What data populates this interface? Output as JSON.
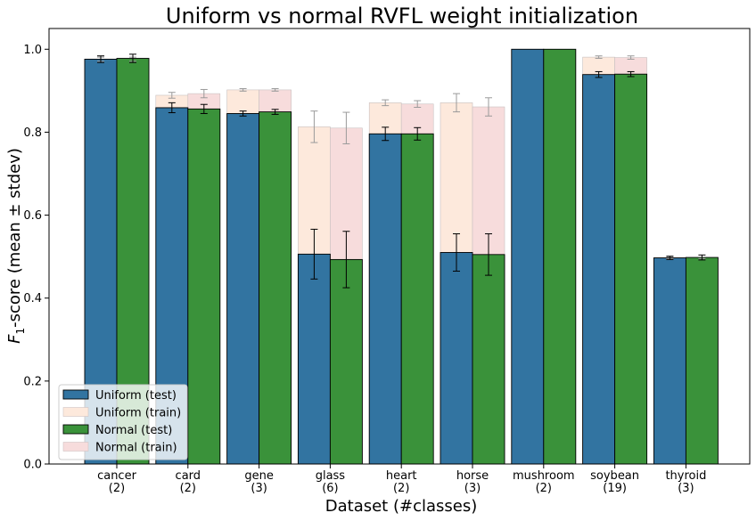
{
  "chart_data": {
    "type": "bar",
    "title": "Uniform vs normal RVFL weight initialization",
    "ylabel_main": "F",
    "ylabel_sub": "1",
    "ylabel_rest": "-score (mean ± stdev)",
    "xlabel": "Dataset (#classes)",
    "ylim": [
      0.0,
      1.05
    ],
    "yticks": [
      "0.0",
      "0.2",
      "0.4",
      "0.6",
      "0.8",
      "1.0"
    ],
    "categories": [
      {
        "name": "cancer",
        "classes": "(2)"
      },
      {
        "name": "card",
        "classes": "(2)"
      },
      {
        "name": "gene",
        "classes": "(3)"
      },
      {
        "name": "glass",
        "classes": "(6)"
      },
      {
        "name": "heart",
        "classes": "(2)"
      },
      {
        "name": "horse",
        "classes": "(3)"
      },
      {
        "name": "mushroom",
        "classes": "(2)"
      },
      {
        "name": "soybean",
        "classes": "(19)"
      },
      {
        "name": "thyroid",
        "classes": "(3)"
      }
    ],
    "series": [
      {
        "name": "Uniform (test)",
        "color": "#3274a1",
        "values": [
          0.976,
          0.859,
          0.845,
          0.506,
          0.796,
          0.51,
          1.0,
          0.939,
          0.497
        ],
        "errors": [
          0.008,
          0.012,
          0.006,
          0.06,
          0.016,
          0.045,
          0.0,
          0.007,
          0.004
        ]
      },
      {
        "name": "Uniform (train)",
        "color": "#fde9dc",
        "values": [
          0.976,
          0.889,
          0.902,
          0.813,
          0.871,
          0.871,
          1.0,
          0.981,
          0.497
        ],
        "errors": [
          0.005,
          0.007,
          0.003,
          0.038,
          0.007,
          0.022,
          0.0,
          0.003,
          0.002
        ]
      },
      {
        "name": "Normal (test)",
        "color": "#3a923a",
        "values": [
          0.978,
          0.856,
          0.849,
          0.493,
          0.796,
          0.505,
          1.0,
          0.94,
          0.498
        ],
        "errors": [
          0.01,
          0.011,
          0.006,
          0.068,
          0.015,
          0.05,
          0.0,
          0.006,
          0.006
        ]
      },
      {
        "name": "Normal (train)",
        "color": "#f7dcdc",
        "values": [
          0.976,
          0.893,
          0.902,
          0.81,
          0.868,
          0.861,
          1.0,
          0.98,
          0.497
        ],
        "errors": [
          0.005,
          0.01,
          0.003,
          0.038,
          0.008,
          0.022,
          0.0,
          0.004,
          0.002
        ]
      }
    ],
    "legend_position": "lower-left",
    "grid": false
  }
}
